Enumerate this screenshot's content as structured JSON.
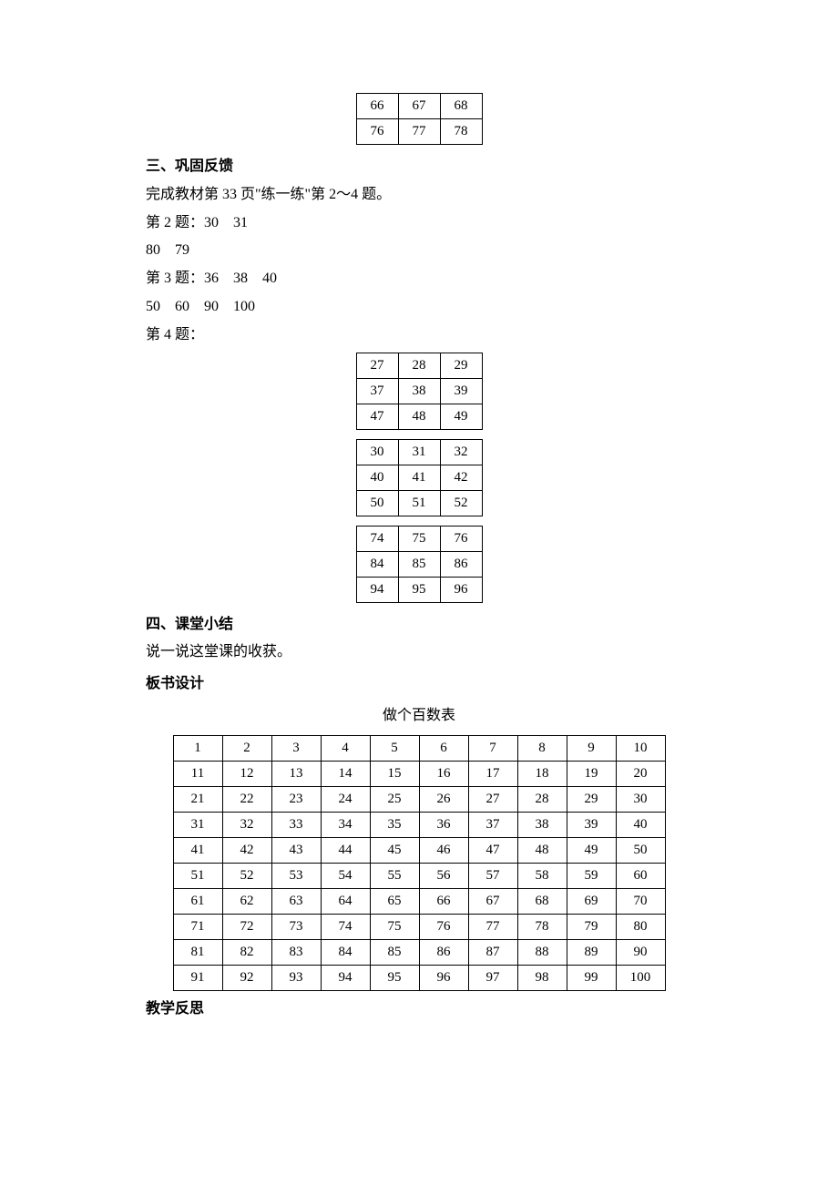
{
  "tables": {
    "top_small": [
      [
        "66",
        "67",
        "68"
      ],
      [
        "76",
        "77",
        "78"
      ]
    ],
    "q4_a": [
      [
        "27",
        "28",
        "29"
      ],
      [
        "37",
        "38",
        "39"
      ],
      [
        "47",
        "48",
        "49"
      ]
    ],
    "q4_b": [
      [
        "30",
        "31",
        "32"
      ],
      [
        "40",
        "41",
        "42"
      ],
      [
        "50",
        "51",
        "52"
      ]
    ],
    "q4_c": [
      [
        "74",
        "75",
        "76"
      ],
      [
        "84",
        "85",
        "86"
      ],
      [
        "94",
        "95",
        "96"
      ]
    ],
    "hundred": [
      [
        "1",
        "2",
        "3",
        "4",
        "5",
        "6",
        "7",
        "8",
        "9",
        "10"
      ],
      [
        "11",
        "12",
        "13",
        "14",
        "15",
        "16",
        "17",
        "18",
        "19",
        "20"
      ],
      [
        "21",
        "22",
        "23",
        "24",
        "25",
        "26",
        "27",
        "28",
        "29",
        "30"
      ],
      [
        "31",
        "32",
        "33",
        "34",
        "35",
        "36",
        "37",
        "38",
        "39",
        "40"
      ],
      [
        "41",
        "42",
        "43",
        "44",
        "45",
        "46",
        "47",
        "48",
        "49",
        "50"
      ],
      [
        "51",
        "52",
        "53",
        "54",
        "55",
        "56",
        "57",
        "58",
        "59",
        "60"
      ],
      [
        "61",
        "62",
        "63",
        "64",
        "65",
        "66",
        "67",
        "68",
        "69",
        "70"
      ],
      [
        "71",
        "72",
        "73",
        "74",
        "75",
        "76",
        "77",
        "78",
        "79",
        "80"
      ],
      [
        "81",
        "82",
        "83",
        "84",
        "85",
        "86",
        "87",
        "88",
        "89",
        "90"
      ],
      [
        "91",
        "92",
        "93",
        "94",
        "95",
        "96",
        "97",
        "98",
        "99",
        "100"
      ]
    ]
  },
  "text": {
    "h3": "三、巩固反馈",
    "p1": "完成教材第 33 页\"练一练\"第 2～4 题。",
    "p2": "第 2 题：30　31",
    "p3": "80　79",
    "p4": "第 3 题：36　38　40",
    "p5": "50　60　90　100",
    "p6": "第 4 题：",
    "h4": "四、课堂小结",
    "p7": "说一说这堂课的收获。",
    "h_board": "板书设计",
    "board_title": "做个百数表",
    "h_reflect": "教学反思"
  },
  "style": {
    "font_size_body": 16,
    "font_size_table": 15,
    "text_color": "#000000",
    "bg_color": "#ffffff",
    "border_color": "#000000",
    "small_cell_width": 46,
    "small_cell_height": 28,
    "big_cell_width": 54,
    "big_cell_height": 28
  }
}
